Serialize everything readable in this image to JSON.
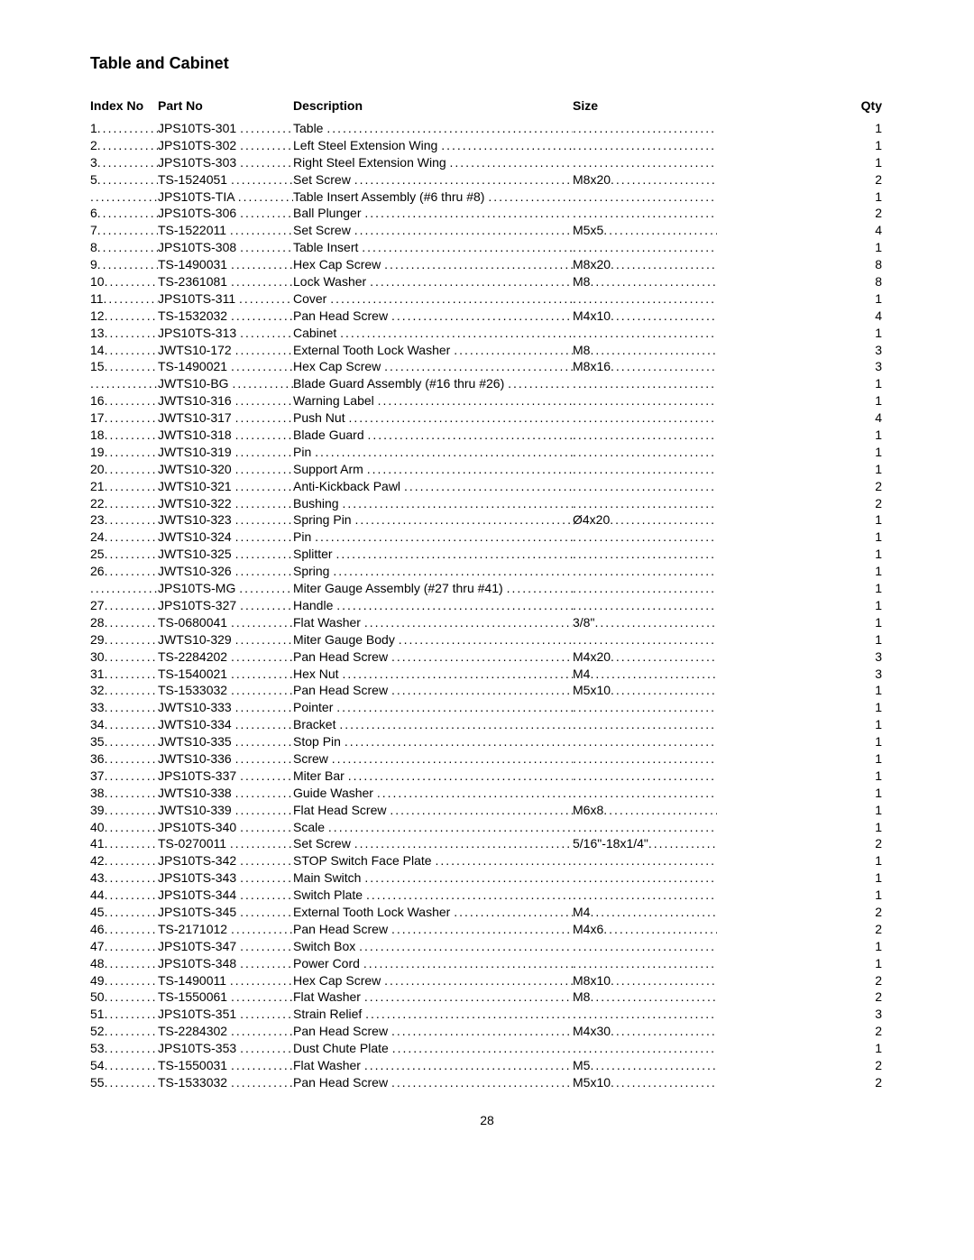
{
  "title": "Table and Cabinet",
  "pageNumber": "28",
  "headers": {
    "index": "Index No",
    "part": "Part No",
    "desc": "Description",
    "size": "Size",
    "qty": "Qty"
  },
  "rows": [
    {
      "index": "1",
      "part": "JPS10TS-301",
      "desc": "Table",
      "size": "",
      "qty": "1"
    },
    {
      "index": "2",
      "part": "JPS10TS-302",
      "desc": "Left Steel Extension Wing",
      "size": "",
      "qty": "1"
    },
    {
      "index": "3",
      "part": "JPS10TS-303",
      "desc": "Right Steel Extension Wing",
      "size": "",
      "qty": "1"
    },
    {
      "index": "5",
      "part": "TS-1524051",
      "desc": "Set Screw",
      "size": "M8x20",
      "qty": "2"
    },
    {
      "index": "",
      "part": "JPS10TS-TIA",
      "desc": "Table Insert Assembly (#6 thru #8)",
      "size": "",
      "qty": "1"
    },
    {
      "index": "6",
      "part": "JPS10TS-306",
      "desc": "Ball Plunger",
      "size": "",
      "qty": "2"
    },
    {
      "index": "7",
      "part": "TS-1522011",
      "desc": "Set Screw",
      "size": "M5x5",
      "qty": "4"
    },
    {
      "index": "8",
      "part": "JPS10TS-308",
      "desc": "Table Insert",
      "size": "",
      "qty": "1"
    },
    {
      "index": "9",
      "part": "TS-1490031",
      "desc": "Hex Cap Screw",
      "size": "M8x20",
      "qty": "8"
    },
    {
      "index": "10",
      "part": "TS-2361081",
      "desc": "Lock Washer",
      "size": "M8",
      "qty": "8"
    },
    {
      "index": "11",
      "part": "JPS10TS-311",
      "desc": "Cover",
      "size": "",
      "qty": "1"
    },
    {
      "index": "12",
      "part": "TS-1532032",
      "desc": "Pan Head Screw",
      "size": "M4x10",
      "qty": "4"
    },
    {
      "index": "13",
      "part": "JPS10TS-313",
      "desc": "Cabinet",
      "size": "",
      "qty": "1"
    },
    {
      "index": "14",
      "part": "JWTS10-172",
      "desc": "External Tooth Lock Washer",
      "size": "M8",
      "qty": "3"
    },
    {
      "index": "15",
      "part": "TS-1490021",
      "desc": "Hex Cap Screw",
      "size": "M8x16",
      "qty": "3"
    },
    {
      "index": "",
      "part": "JWTS10-BG",
      "desc": "Blade Guard Assembly (#16 thru #26)",
      "size": "",
      "qty": "1"
    },
    {
      "index": "16",
      "part": "JWTS10-316",
      "desc": "Warning Label",
      "size": "",
      "qty": "1"
    },
    {
      "index": "17",
      "part": "JWTS10-317",
      "desc": "Push Nut",
      "size": "",
      "qty": "4"
    },
    {
      "index": "18",
      "part": "JWTS10-318",
      "desc": "Blade Guard",
      "size": "",
      "qty": "1"
    },
    {
      "index": "19",
      "part": "JWTS10-319",
      "desc": "Pin",
      "size": "",
      "qty": "1"
    },
    {
      "index": "20",
      "part": "JWTS10-320",
      "desc": "Support Arm",
      "size": "",
      "qty": "1"
    },
    {
      "index": "21",
      "part": "JWTS10-321",
      "desc": "Anti-Kickback Pawl",
      "size": "",
      "qty": "2"
    },
    {
      "index": "22",
      "part": "JWTS10-322",
      "desc": "Bushing",
      "size": "",
      "qty": "2"
    },
    {
      "index": "23",
      "part": "JWTS10-323",
      "desc": "Spring Pin",
      "size": "Ø4x20",
      "qty": "1"
    },
    {
      "index": "24",
      "part": "JWTS10-324",
      "desc": "Pin",
      "size": "",
      "qty": "1"
    },
    {
      "index": "25",
      "part": "JWTS10-325",
      "desc": "Splitter",
      "size": "",
      "qty": "1"
    },
    {
      "index": "26",
      "part": "JWTS10-326",
      "desc": "Spring",
      "size": "",
      "qty": "1"
    },
    {
      "index": "",
      "part": "JPS10TS-MG",
      "desc": "Miter Gauge Assembly (#27 thru #41)",
      "size": "",
      "qty": "1"
    },
    {
      "index": "27",
      "part": "JPS10TS-327",
      "desc": "Handle",
      "size": "",
      "qty": "1"
    },
    {
      "index": "28",
      "part": "TS-0680041",
      "desc": "Flat Washer",
      "size": "3/8\"",
      "qty": "1"
    },
    {
      "index": "29",
      "part": "JWTS10-329",
      "desc": "Miter Gauge Body",
      "size": "",
      "qty": "1"
    },
    {
      "index": "30",
      "part": "TS-2284202",
      "desc": "Pan Head Screw",
      "size": "M4x20",
      "qty": "3"
    },
    {
      "index": "31",
      "part": "TS-1540021",
      "desc": "Hex Nut",
      "size": "M4",
      "qty": "3"
    },
    {
      "index": "32",
      "part": "TS-1533032",
      "desc": "Pan Head Screw",
      "size": "M5x10",
      "qty": "1"
    },
    {
      "index": "33",
      "part": "JWTS10-333",
      "desc": "Pointer",
      "size": "",
      "qty": "1"
    },
    {
      "index": "34",
      "part": "JWTS10-334",
      "desc": "Bracket",
      "size": "",
      "qty": "1"
    },
    {
      "index": "35",
      "part": "JWTS10-335",
      "desc": "Stop Pin",
      "size": "",
      "qty": "1"
    },
    {
      "index": "36",
      "part": "JWTS10-336",
      "desc": "Screw",
      "size": "",
      "qty": "1"
    },
    {
      "index": "37",
      "part": "JPS10TS-337",
      "desc": "Miter Bar",
      "size": "",
      "qty": "1"
    },
    {
      "index": "38",
      "part": "JWTS10-338",
      "desc": "Guide Washer",
      "size": "",
      "qty": "1"
    },
    {
      "index": "39",
      "part": "JWTS10-339",
      "desc": "Flat Head Screw",
      "size": "M6x8",
      "qty": "1"
    },
    {
      "index": "40",
      "part": "JPS10TS-340",
      "desc": "Scale",
      "size": "",
      "qty": "1"
    },
    {
      "index": "41",
      "part": "TS-0270011",
      "desc": "Set Screw",
      "size": "5/16\"-18x1/4\"",
      "qty": "2"
    },
    {
      "index": "42",
      "part": "JPS10TS-342",
      "desc": "STOP Switch Face Plate",
      "size": "",
      "qty": "1"
    },
    {
      "index": "43",
      "part": "JPS10TS-343",
      "desc": "Main Switch",
      "size": "",
      "qty": "1"
    },
    {
      "index": "44",
      "part": "JPS10TS-344",
      "desc": "Switch Plate",
      "size": "",
      "qty": "1"
    },
    {
      "index": "45",
      "part": "JPS10TS-345",
      "desc": "External Tooth Lock Washer",
      "size": "M4",
      "qty": "2"
    },
    {
      "index": "46",
      "part": "TS-2171012",
      "desc": "Pan Head Screw",
      "size": "M4x6",
      "qty": "2"
    },
    {
      "index": "47",
      "part": "JPS10TS-347",
      "desc": "Switch Box",
      "size": "",
      "qty": "1"
    },
    {
      "index": "48",
      "part": "JPS10TS-348",
      "desc": "Power Cord",
      "size": "",
      "qty": "1"
    },
    {
      "index": "49",
      "part": "TS-1490011",
      "desc": "Hex Cap Screw",
      "size": "M8x10",
      "qty": "2"
    },
    {
      "index": "50",
      "part": "TS-1550061",
      "desc": "Flat Washer",
      "size": "M8",
      "qty": "2"
    },
    {
      "index": "51",
      "part": "JPS10TS-351",
      "desc": "Strain Relief",
      "size": "",
      "qty": "3"
    },
    {
      "index": "52",
      "part": "TS-2284302",
      "desc": "Pan Head Screw",
      "size": "M4x30",
      "qty": "2"
    },
    {
      "index": "53",
      "part": "JPS10TS-353",
      "desc": "Dust Chute Plate",
      "size": "",
      "qty": "1"
    },
    {
      "index": "54",
      "part": "TS-1550031",
      "desc": "Flat Washer",
      "size": "M5",
      "qty": "2"
    },
    {
      "index": "55",
      "part": "TS-1533032",
      "desc": "Pan Head Screw",
      "size": "M5x10",
      "qty": "2"
    }
  ]
}
